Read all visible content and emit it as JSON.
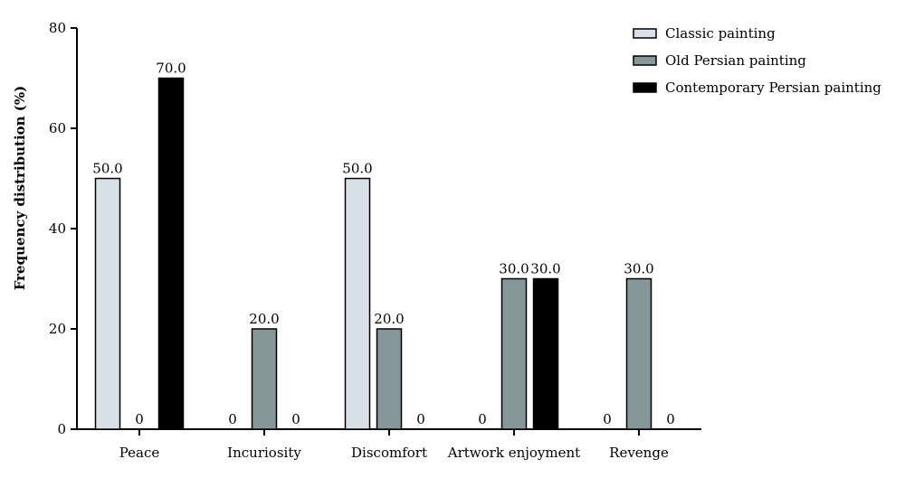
{
  "chart_data": {
    "type": "bar",
    "title": "",
    "xlabel": "",
    "ylabel": "Frequency distribution (%)",
    "ylim": [
      0,
      80
    ],
    "yticks": [
      0,
      20,
      40,
      60,
      80
    ],
    "categories": [
      "Peace",
      "Incuriosity",
      "Discomfort",
      "Artwork enjoyment",
      "Revenge"
    ],
    "series": [
      {
        "name": "Classic painting",
        "color": "#d9e1e8",
        "values": [
          50,
          0,
          50,
          0,
          0
        ],
        "labels": [
          "50.0",
          "0",
          "50.0",
          "0",
          "0"
        ]
      },
      {
        "name": "Old Persian painting",
        "color": "#869799",
        "values": [
          0,
          20,
          20,
          30,
          30
        ],
        "labels": [
          "0",
          "20.0",
          "20.0",
          "30.0",
          "30.0"
        ]
      },
      {
        "name": "Contemporary Persian painting",
        "color": "#000000",
        "values": [
          70,
          0,
          0,
          30,
          0
        ],
        "labels": [
          "70.0",
          "0",
          "0",
          "30.0",
          "0"
        ]
      }
    ],
    "legend_position": "top-right",
    "grid": false
  }
}
